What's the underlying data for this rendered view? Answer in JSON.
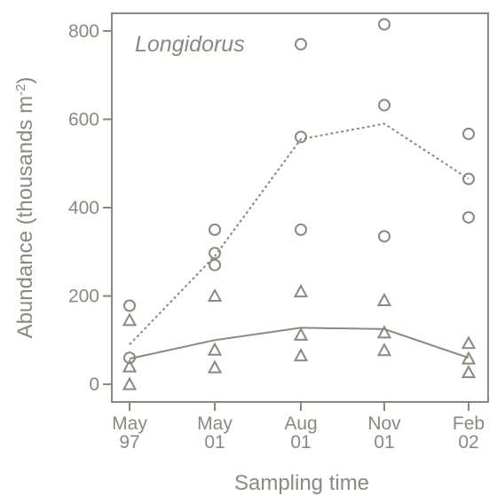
{
  "chart_data": {
    "type": "scatter",
    "title": "",
    "annotation": "Longidorus",
    "xlabel": "Sampling time",
    "ylabel": "Abundance (thousands m",
    "ylabel_sup": "-2",
    "ylabel_close": ")",
    "categories": [
      "May 97",
      "May 01",
      "Aug 01",
      "Nov 01",
      "Feb 02"
    ],
    "category_lines": [
      [
        "May",
        "97"
      ],
      [
        "May",
        "01"
      ],
      [
        "Aug",
        "01"
      ],
      [
        "Nov",
        "01"
      ],
      [
        "Feb",
        "02"
      ]
    ],
    "yticks": [
      "0",
      "200",
      "400",
      "600",
      "800"
    ],
    "ylim": [
      -40,
      840
    ],
    "grid": false,
    "color": "#8c887e",
    "series": [
      {
        "marker": "circle",
        "points": [
          {
            "x": "May 97",
            "y": 178
          },
          {
            "x": "May 97",
            "y": 60
          },
          {
            "x": "May 01",
            "y": 350
          },
          {
            "x": "May 01",
            "y": 297
          },
          {
            "x": "May 01",
            "y": 270
          },
          {
            "x": "Aug 01",
            "y": 770
          },
          {
            "x": "Aug 01",
            "y": 560
          },
          {
            "x": "Aug 01",
            "y": 350
          },
          {
            "x": "Nov 01",
            "y": 815
          },
          {
            "x": "Nov 01",
            "y": 632
          },
          {
            "x": "Nov 01",
            "y": 335
          },
          {
            "x": "Feb 02",
            "y": 567
          },
          {
            "x": "Feb 02",
            "y": 465
          },
          {
            "x": "Feb 02",
            "y": 378
          }
        ],
        "mean_line": {
          "style": "dotted",
          "values": [
            90,
            290,
            555,
            590,
            465
          ]
        }
      },
      {
        "marker": "triangle",
        "points": [
          {
            "x": "May 97",
            "y": 145
          },
          {
            "x": "May 97",
            "y": 40
          },
          {
            "x": "May 97",
            "y": 0
          },
          {
            "x": "May 01",
            "y": 200
          },
          {
            "x": "May 01",
            "y": 78
          },
          {
            "x": "May 01",
            "y": 38
          },
          {
            "x": "Aug 01",
            "y": 210
          },
          {
            "x": "Aug 01",
            "y": 112
          },
          {
            "x": "Aug 01",
            "y": 65
          },
          {
            "x": "Nov 01",
            "y": 190
          },
          {
            "x": "Nov 01",
            "y": 117
          },
          {
            "x": "Nov 01",
            "y": 77
          },
          {
            "x": "Feb 02",
            "y": 93
          },
          {
            "x": "Feb 02",
            "y": 58
          },
          {
            "x": "Feb 02",
            "y": 27
          }
        ],
        "mean_line": {
          "style": "solid",
          "values": [
            58,
            100,
            128,
            125,
            60
          ]
        }
      }
    ]
  }
}
